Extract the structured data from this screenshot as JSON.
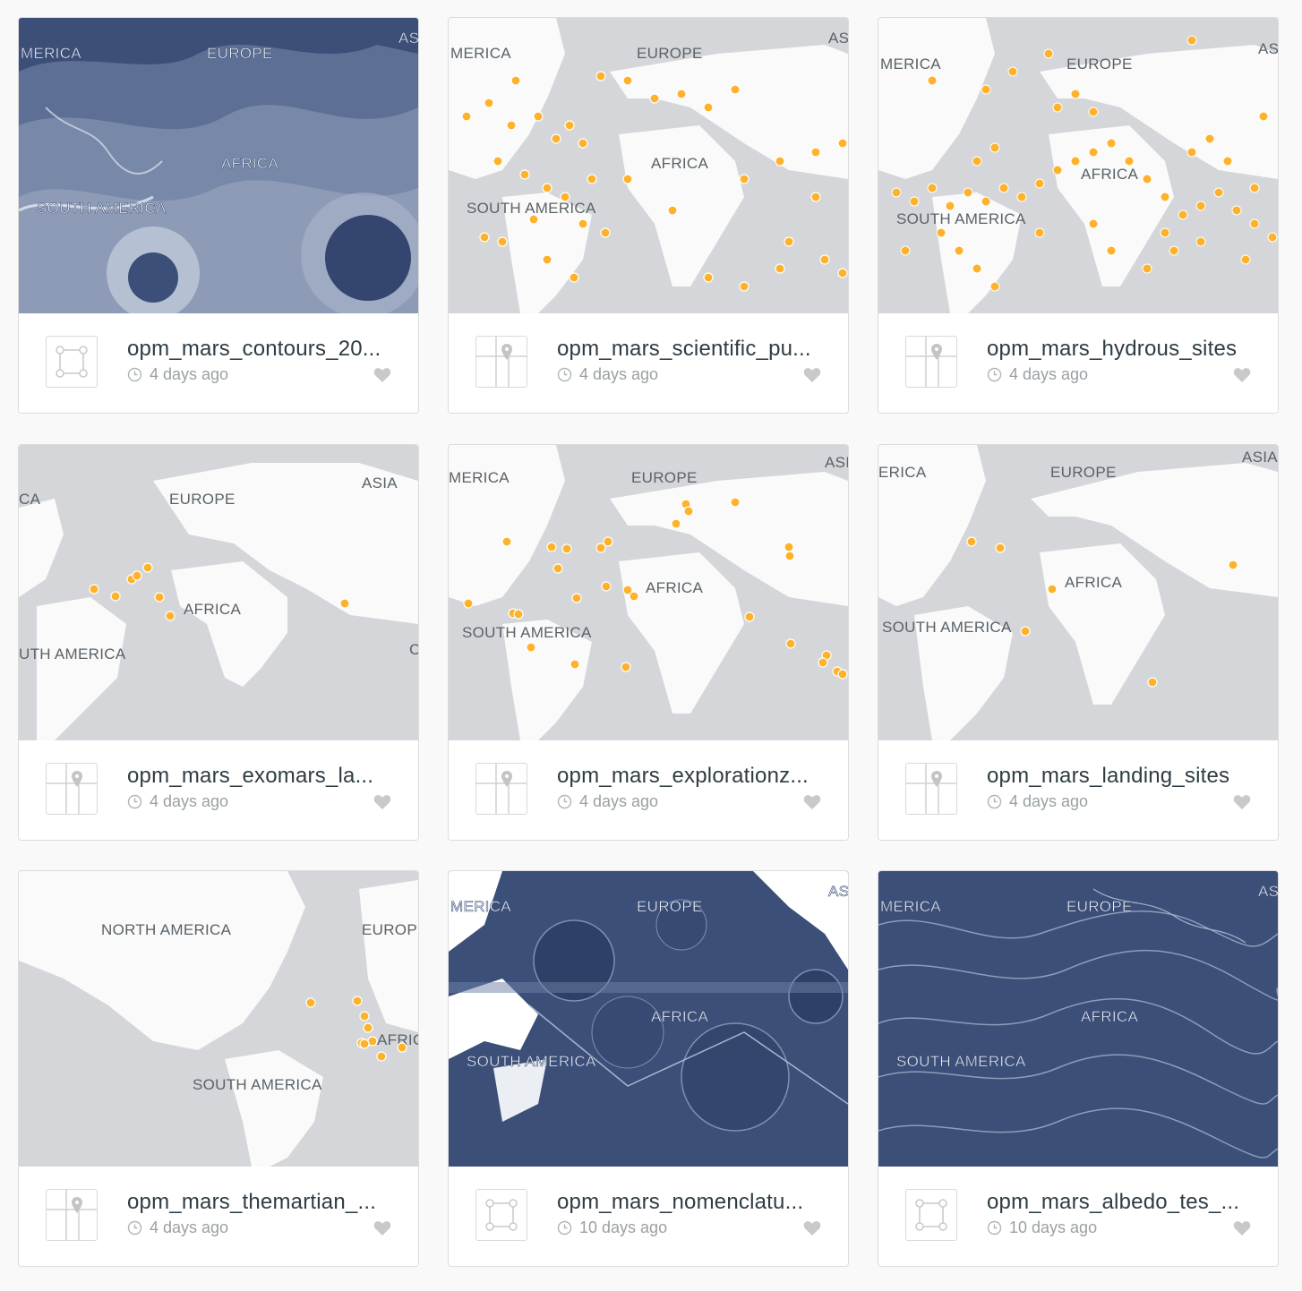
{
  "cards": [
    {
      "title": "opm_mars_contours_20...",
      "age": "4 days ago",
      "kind": "polygon-icon",
      "style": "dark-contours",
      "labels": [
        "MERICA",
        "EUROPE",
        "AS",
        "AFRICA",
        "SOUTH AMERICA"
      ]
    },
    {
      "title": "opm_mars_scientific_pu...",
      "age": "4 days ago",
      "kind": "point-map-icon",
      "style": "light-points",
      "labels": [
        "MERICA",
        "EUROPE",
        "AS",
        "AFRICA",
        "SOUTH AMERICA"
      ]
    },
    {
      "title": "opm_mars_hydrous_sites",
      "age": "4 days ago",
      "kind": "point-map-icon",
      "style": "light-dense",
      "labels": [
        "MERICA",
        "EUROPE",
        "AS",
        "AFRICA",
        "SOUTH AMERICA"
      ]
    },
    {
      "title": "opm_mars_exomars_la...",
      "age": "4 days ago",
      "kind": "point-map-icon",
      "style": "light-few",
      "labels": [
        "CA",
        "EUROPE",
        "ASIA",
        "AFRICA",
        "UTH AMERICA",
        "C"
      ]
    },
    {
      "title": "opm_mars_explorationz...",
      "age": "4 days ago",
      "kind": "point-map-icon",
      "style": "light-few",
      "labels": [
        "MERICA",
        "EUROPE",
        "ASI",
        "AFRICA",
        "SOUTH AMERICA"
      ]
    },
    {
      "title": "opm_mars_landing_sites",
      "age": "4 days ago",
      "kind": "point-map-icon",
      "style": "light-few",
      "labels": [
        "ERICA",
        "EUROPE",
        "ASIA",
        "AFRICA",
        "SOUTH AMERICA"
      ]
    },
    {
      "title": "opm_mars_themartian_...",
      "age": "4 days ago",
      "kind": "point-map-icon",
      "style": "light-few",
      "labels": [
        "NORTH AMERICA",
        "EUROP",
        "AFRIC",
        "SOUTH AMERICA"
      ]
    },
    {
      "title": "opm_mars_nomenclatu...",
      "age": "10 days ago",
      "kind": "polygon-icon",
      "style": "dark-polygons",
      "labels": [
        "MERICA",
        "EUROPE",
        "AS",
        "AFRICA",
        "SOUTH AMERICA"
      ]
    },
    {
      "title": "opm_mars_albedo_tes_...",
      "age": "10 days ago",
      "kind": "polygon-icon",
      "style": "dark-lines",
      "labels": [
        "MERICA",
        "EUROPE",
        "AS",
        "AFRICA",
        "SOUTH AMERICA"
      ]
    }
  ],
  "colors": {
    "point": "#fdb22a",
    "dark_map": "#3b4f78",
    "light_land": "#fafafa",
    "light_water": "#d4d6d9"
  }
}
